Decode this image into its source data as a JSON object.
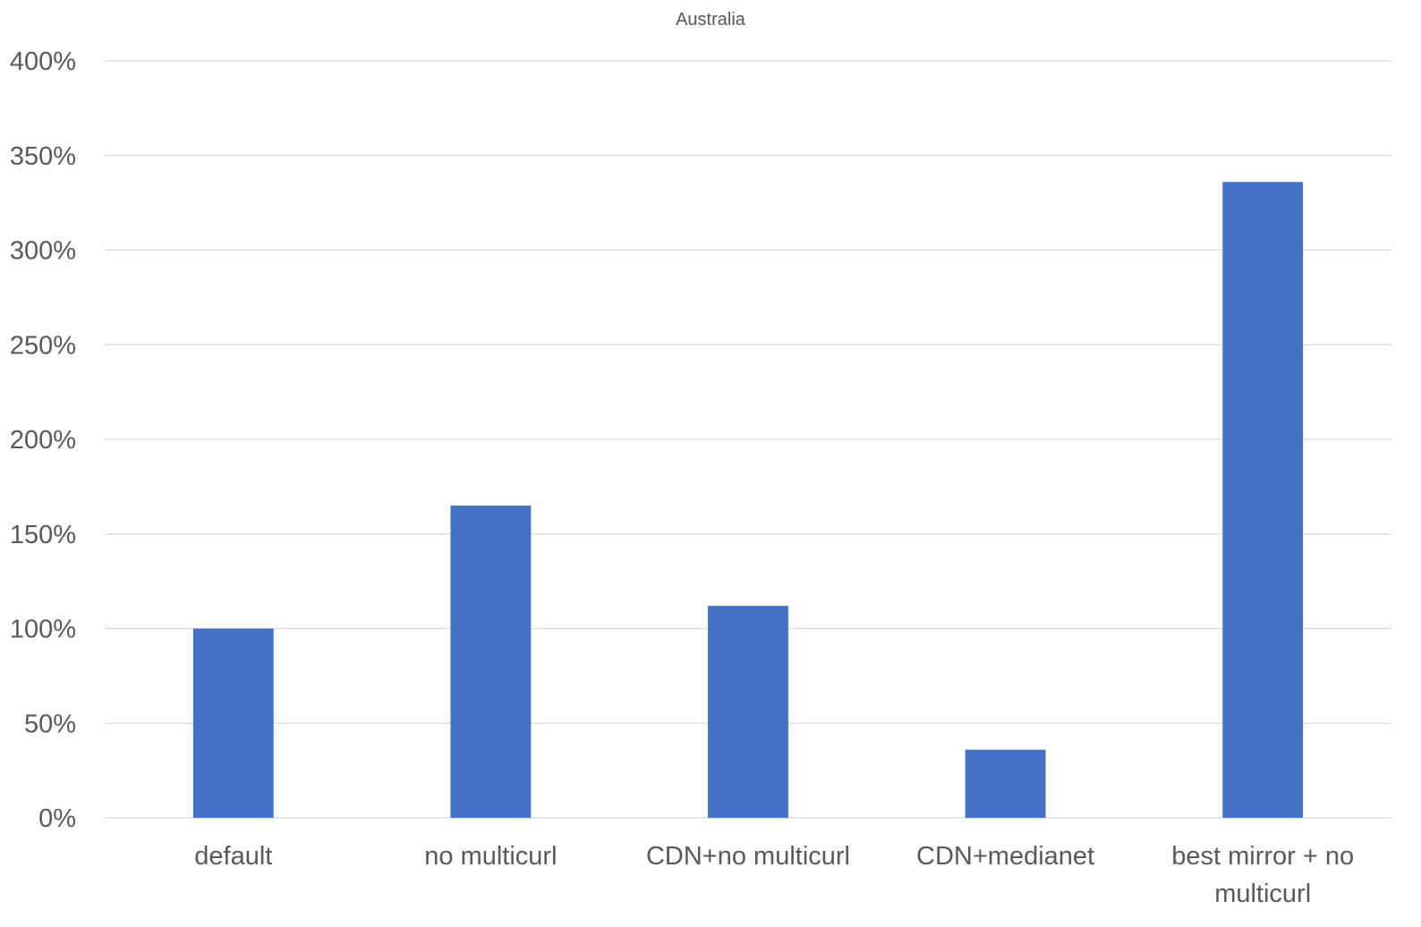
{
  "chart_data": {
    "type": "bar",
    "title": "Australia",
    "categories": [
      [
        "default"
      ],
      [
        "no multicurl"
      ],
      [
        "CDN+no multicurl"
      ],
      [
        "CDN+medianet"
      ],
      [
        "best mirror + no",
        "multicurl"
      ]
    ],
    "values": [
      100,
      165,
      112,
      36,
      336
    ],
    "value_unit": "%",
    "y_ticks": [
      "0%",
      "50%",
      "100%",
      "150%",
      "200%",
      "250%",
      "300%",
      "350%",
      "400%"
    ],
    "ylim": [
      0,
      400
    ],
    "xlabel": "",
    "ylabel": "",
    "grid": true,
    "legend": "none",
    "colors": {
      "bar": "#4472c4",
      "grid": "#d9d9d9",
      "text": "#595959"
    }
  }
}
